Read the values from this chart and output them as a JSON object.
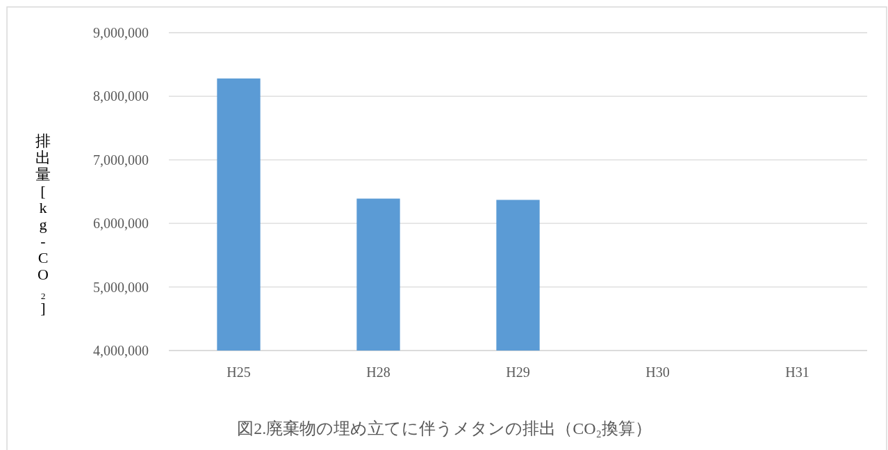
{
  "chart_data": {
    "type": "bar",
    "title": "図2.廃棄物の埋め立てに伴うメタンの排出（CO₂換算）",
    "ylabel": "排出量[kg-CO₂]",
    "categories": [
      "H25",
      "H28",
      "H29",
      "H30",
      "H31"
    ],
    "values": [
      8280000,
      6390000,
      6370000,
      null,
      null
    ],
    "color": "#5b9bd5",
    "ylim": [
      4000000,
      9000000
    ],
    "yticks": [
      {
        "value": 4000000,
        "label": "4,000,000"
      },
      {
        "value": 5000000,
        "label": "5,000,000"
      },
      {
        "value": 6000000,
        "label": "6,000,000"
      },
      {
        "value": 7000000,
        "label": "7,000,000"
      },
      {
        "value": 8000000,
        "label": "8,000,000"
      },
      {
        "value": 9000000,
        "label": "9,000,000"
      }
    ],
    "grid": "y"
  }
}
